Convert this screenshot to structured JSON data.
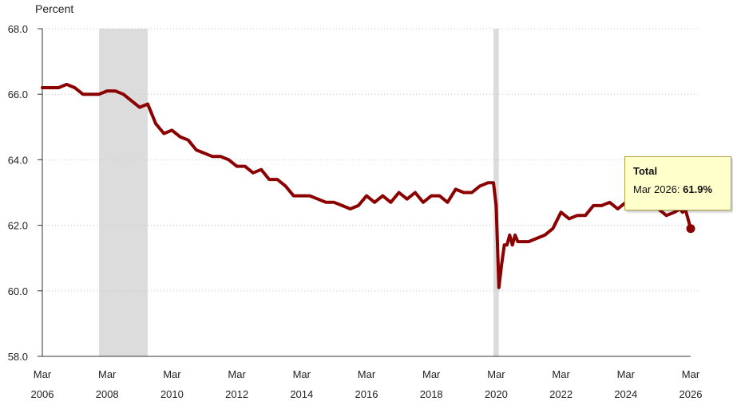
{
  "chart_data": {
    "type": "line",
    "ylabel": "Percent",
    "ylim": [
      58.0,
      68.0
    ],
    "yticks": [
      "68.0",
      "66.0",
      "64.0",
      "62.0",
      "60.0",
      "58.0"
    ],
    "xticks": [
      {
        "month": "Mar",
        "year": "2006"
      },
      {
        "month": "Mar",
        "year": "2008"
      },
      {
        "month": "Mar",
        "year": "2010"
      },
      {
        "month": "Mar",
        "year": "2012"
      },
      {
        "month": "Mar",
        "year": "2014"
      },
      {
        "month": "Mar",
        "year": "2016"
      },
      {
        "month": "Mar",
        "year": "2018"
      },
      {
        "month": "Mar",
        "year": "2020"
      },
      {
        "month": "Mar",
        "year": "2022"
      },
      {
        "month": "Mar",
        "year": "2024"
      },
      {
        "month": "Mar",
        "year": "2026"
      }
    ],
    "recessions": [
      {
        "start": "2007-12",
        "end": "2009-06"
      },
      {
        "start": "2020-02",
        "end": "2020-04"
      }
    ],
    "grid": true,
    "series": [
      {
        "name": "Total",
        "color": "#8b0000",
        "points": [
          [
            "2006-03",
            66.2
          ],
          [
            "2006-06",
            66.2
          ],
          [
            "2006-09",
            66.2
          ],
          [
            "2006-12",
            66.3
          ],
          [
            "2007-03",
            66.2
          ],
          [
            "2007-06",
            66.0
          ],
          [
            "2007-09",
            66.0
          ],
          [
            "2007-12",
            66.0
          ],
          [
            "2008-03",
            66.1
          ],
          [
            "2008-06",
            66.1
          ],
          [
            "2008-09",
            66.0
          ],
          [
            "2008-12",
            65.8
          ],
          [
            "2009-03",
            65.6
          ],
          [
            "2009-06",
            65.7
          ],
          [
            "2009-09",
            65.1
          ],
          [
            "2009-12",
            64.8
          ],
          [
            "2010-03",
            64.9
          ],
          [
            "2010-06",
            64.7
          ],
          [
            "2010-09",
            64.6
          ],
          [
            "2010-12",
            64.3
          ],
          [
            "2011-03",
            64.2
          ],
          [
            "2011-06",
            64.1
          ],
          [
            "2011-09",
            64.1
          ],
          [
            "2011-12",
            64.0
          ],
          [
            "2012-03",
            63.8
          ],
          [
            "2012-06",
            63.8
          ],
          [
            "2012-09",
            63.6
          ],
          [
            "2012-12",
            63.7
          ],
          [
            "2013-03",
            63.4
          ],
          [
            "2013-06",
            63.4
          ],
          [
            "2013-09",
            63.2
          ],
          [
            "2013-12",
            62.9
          ],
          [
            "2014-03",
            62.9
          ],
          [
            "2014-06",
            62.9
          ],
          [
            "2014-09",
            62.8
          ],
          [
            "2014-12",
            62.7
          ],
          [
            "2015-03",
            62.7
          ],
          [
            "2015-06",
            62.6
          ],
          [
            "2015-09",
            62.5
          ],
          [
            "2015-12",
            62.6
          ],
          [
            "2016-03",
            62.9
          ],
          [
            "2016-06",
            62.7
          ],
          [
            "2016-09",
            62.9
          ],
          [
            "2016-12",
            62.7
          ],
          [
            "2017-03",
            63.0
          ],
          [
            "2017-06",
            62.8
          ],
          [
            "2017-09",
            63.0
          ],
          [
            "2017-12",
            62.7
          ],
          [
            "2018-03",
            62.9
          ],
          [
            "2018-06",
            62.9
          ],
          [
            "2018-09",
            62.7
          ],
          [
            "2018-12",
            63.1
          ],
          [
            "2019-03",
            63.0
          ],
          [
            "2019-06",
            63.0
          ],
          [
            "2019-09",
            63.2
          ],
          [
            "2019-12",
            63.3
          ],
          [
            "2020-01",
            63.3
          ],
          [
            "2020-02",
            63.3
          ],
          [
            "2020-03",
            62.6
          ],
          [
            "2020-04",
            60.1
          ],
          [
            "2020-05",
            60.8
          ],
          [
            "2020-06",
            61.4
          ],
          [
            "2020-07",
            61.4
          ],
          [
            "2020-08",
            61.7
          ],
          [
            "2020-09",
            61.4
          ],
          [
            "2020-10",
            61.7
          ],
          [
            "2020-11",
            61.5
          ],
          [
            "2020-12",
            61.5
          ],
          [
            "2021-03",
            61.5
          ],
          [
            "2021-06",
            61.6
          ],
          [
            "2021-09",
            61.7
          ],
          [
            "2021-12",
            61.9
          ],
          [
            "2022-03",
            62.4
          ],
          [
            "2022-06",
            62.2
          ],
          [
            "2022-09",
            62.3
          ],
          [
            "2022-12",
            62.3
          ],
          [
            "2023-03",
            62.6
          ],
          [
            "2023-06",
            62.6
          ],
          [
            "2023-09",
            62.7
          ],
          [
            "2023-12",
            62.5
          ],
          [
            "2024-03",
            62.7
          ],
          [
            "2024-06",
            62.6
          ],
          [
            "2024-09",
            62.7
          ],
          [
            "2024-12",
            62.5
          ],
          [
            "2025-03",
            62.5
          ],
          [
            "2025-06",
            62.3
          ],
          [
            "2025-09",
            62.4
          ],
          [
            "2025-11",
            62.5
          ],
          [
            "2025-12",
            62.4
          ],
          [
            "2026-01",
            62.5
          ],
          [
            "2026-02",
            62.2
          ],
          [
            "2026-03",
            61.9
          ]
        ]
      }
    ],
    "tooltip": {
      "title": "Total",
      "label": "Mar 2026: ",
      "value": "61.9%"
    }
  }
}
